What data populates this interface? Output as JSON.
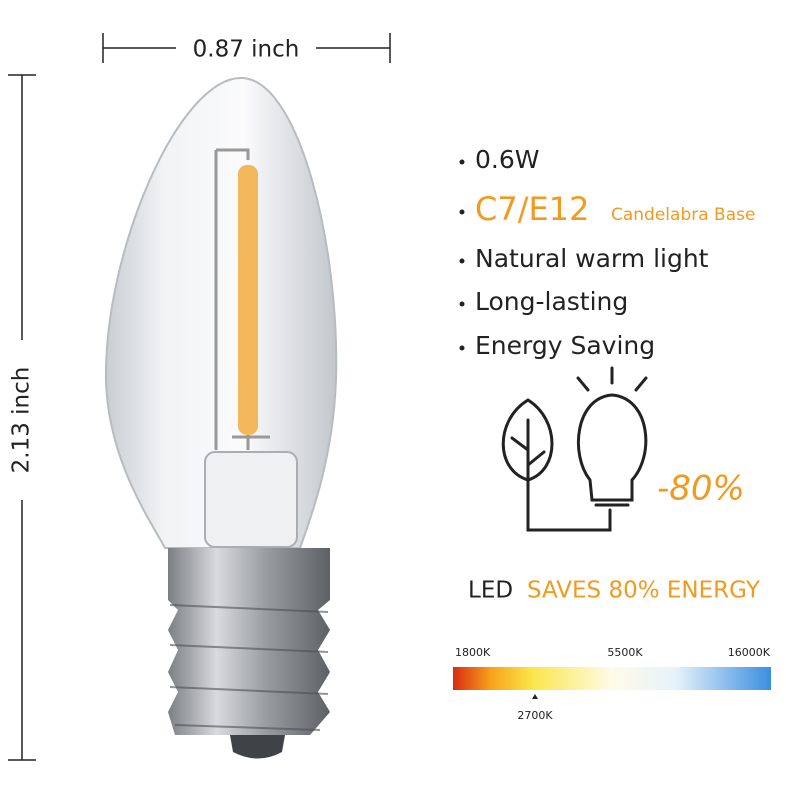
{
  "dimensions": {
    "width": "0.87 inch",
    "height": "2.13 inch"
  },
  "features": {
    "wattage": "0.6W",
    "base": "C7/E12",
    "base_name": "Candelabra Base",
    "items": [
      "Natural warm light",
      "Long-lasting",
      "Energy Saving"
    ]
  },
  "saving": {
    "percent": "-80%",
    "led": "LED",
    "claim": "SAVES 80% ENERGY"
  },
  "color_scale": {
    "labels": [
      "1800K",
      "5500K",
      "16000K"
    ],
    "marker": "2700K"
  }
}
